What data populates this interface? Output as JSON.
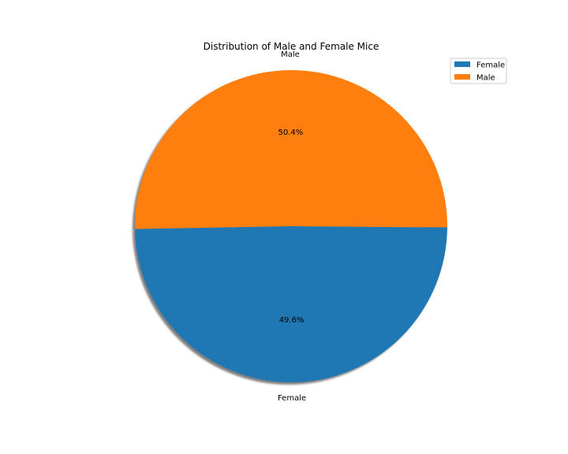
{
  "chart_data": {
    "type": "pie",
    "title": "Distribution of Male and Female Mice",
    "labels": [
      "Female",
      "Male"
    ],
    "values": [
      49.6,
      50.4
    ],
    "autopct_labels": [
      "49.6%",
      "50.4%"
    ],
    "colors": [
      "#1f77b4",
      "#ff7f0e"
    ],
    "shadow": true,
    "start_angle_deg": 181,
    "direction": "counterclockwise",
    "legend": {
      "entries": [
        "Female",
        "Male"
      ],
      "location": "upper right"
    }
  }
}
